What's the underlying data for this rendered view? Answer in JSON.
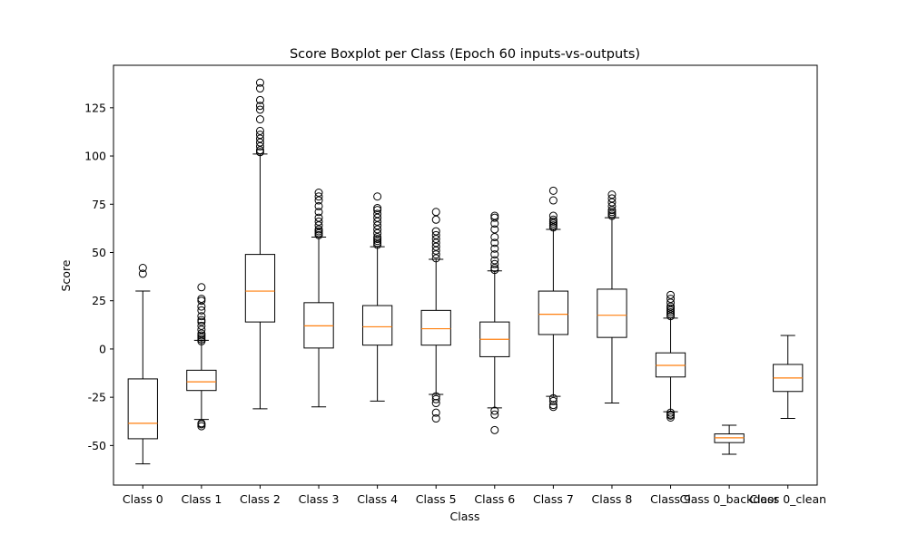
{
  "chart_data": {
    "type": "boxplot",
    "title": "Score Boxplot per Class (Epoch 60 inputs-vs-outputs)",
    "xlabel": "Class",
    "ylabel": "Score",
    "ylim": [
      -70.5,
      147
    ],
    "yticks": [
      -50,
      -25,
      0,
      25,
      50,
      75,
      100,
      125
    ],
    "grid": false,
    "colors": {
      "box": "#000000",
      "median": "#ff7f0e",
      "flier": "#000000"
    },
    "categories": [
      "Class 0",
      "Class 1",
      "Class 2",
      "Class 3",
      "Class 4",
      "Class 5",
      "Class 6",
      "Class 7",
      "Class 8",
      "Class 9",
      "Class 0_backdoor",
      "Class 0_clean"
    ],
    "boxes": [
      {
        "label": "Class 0",
        "whislo": -59.5,
        "q1": -46.5,
        "med": -38.5,
        "q3": -15.5,
        "whishi": 30,
        "fliers": [
          39,
          42
        ]
      },
      {
        "label": "Class 1",
        "whislo": -36.5,
        "q1": -21.5,
        "med": -17,
        "q3": -11,
        "whishi": 4.5,
        "fliers": [
          -40,
          -39,
          -38.5,
          4,
          5,
          6,
          7,
          8,
          10,
          12,
          14,
          15,
          17,
          20,
          22,
          25,
          26,
          32
        ]
      },
      {
        "label": "Class 2",
        "whislo": -31,
        "q1": 14,
        "med": 30,
        "q3": 49,
        "whishi": 101,
        "fliers": [
          102,
          103,
          105,
          107,
          109,
          111,
          113,
          119,
          124,
          126,
          129,
          135,
          138
        ]
      },
      {
        "label": "Class 3",
        "whislo": -30,
        "q1": 0.5,
        "med": 12,
        "q3": 24,
        "whishi": 58,
        "fliers": [
          59,
          60,
          61,
          62,
          64,
          66,
          68,
          71,
          74,
          77,
          79,
          81
        ]
      },
      {
        "label": "Class 4",
        "whislo": -27,
        "q1": 2,
        "med": 11.5,
        "q3": 22.5,
        "whishi": 53,
        "fliers": [
          54,
          55,
          56,
          57,
          58,
          60,
          62,
          64,
          66,
          68,
          70,
          72,
          73,
          79
        ]
      },
      {
        "label": "Class 5",
        "whislo": -23.5,
        "q1": 2,
        "med": 10.5,
        "q3": 20,
        "whishi": 46.5,
        "fliers": [
          -36,
          -33,
          -28,
          -26,
          -24.5,
          47,
          49,
          51,
          53,
          55,
          57,
          59,
          61,
          67,
          71
        ]
      },
      {
        "label": "Class 6",
        "whislo": -30.5,
        "q1": -4,
        "med": 5,
        "q3": 14,
        "whishi": 40.5,
        "fliers": [
          -42,
          -34,
          -32,
          41,
          42,
          44,
          46,
          49,
          52,
          55,
          58,
          62,
          65,
          68,
          69
        ]
      },
      {
        "label": "Class 7",
        "whislo": -24.5,
        "q1": 7.5,
        "med": 18,
        "q3": 30,
        "whishi": 62,
        "fliers": [
          -30,
          -29,
          -27,
          -25.5,
          63,
          64,
          65,
          66,
          67,
          69,
          77,
          82
        ]
      },
      {
        "label": "Class 8",
        "whislo": -28,
        "q1": 6,
        "med": 17.5,
        "q3": 31,
        "whishi": 68,
        "fliers": [
          69,
          70,
          71,
          72,
          74,
          76,
          78,
          80
        ]
      },
      {
        "label": "Class 9",
        "whislo": -32.5,
        "q1": -14.5,
        "med": -8.5,
        "q3": -2,
        "whishi": 16,
        "fliers": [
          -35.5,
          -34.5,
          -34,
          -33,
          17,
          18,
          19,
          20,
          21,
          22,
          24,
          26,
          28
        ]
      },
      {
        "label": "Class 0_backdoor",
        "whislo": -54.5,
        "q1": -48.5,
        "med": -46,
        "q3": -44,
        "whishi": -39.5,
        "fliers": []
      },
      {
        "label": "Class 0_clean",
        "whislo": -36,
        "q1": -22,
        "med": -15,
        "q3": -8,
        "whishi": 7,
        "fliers": []
      }
    ]
  }
}
